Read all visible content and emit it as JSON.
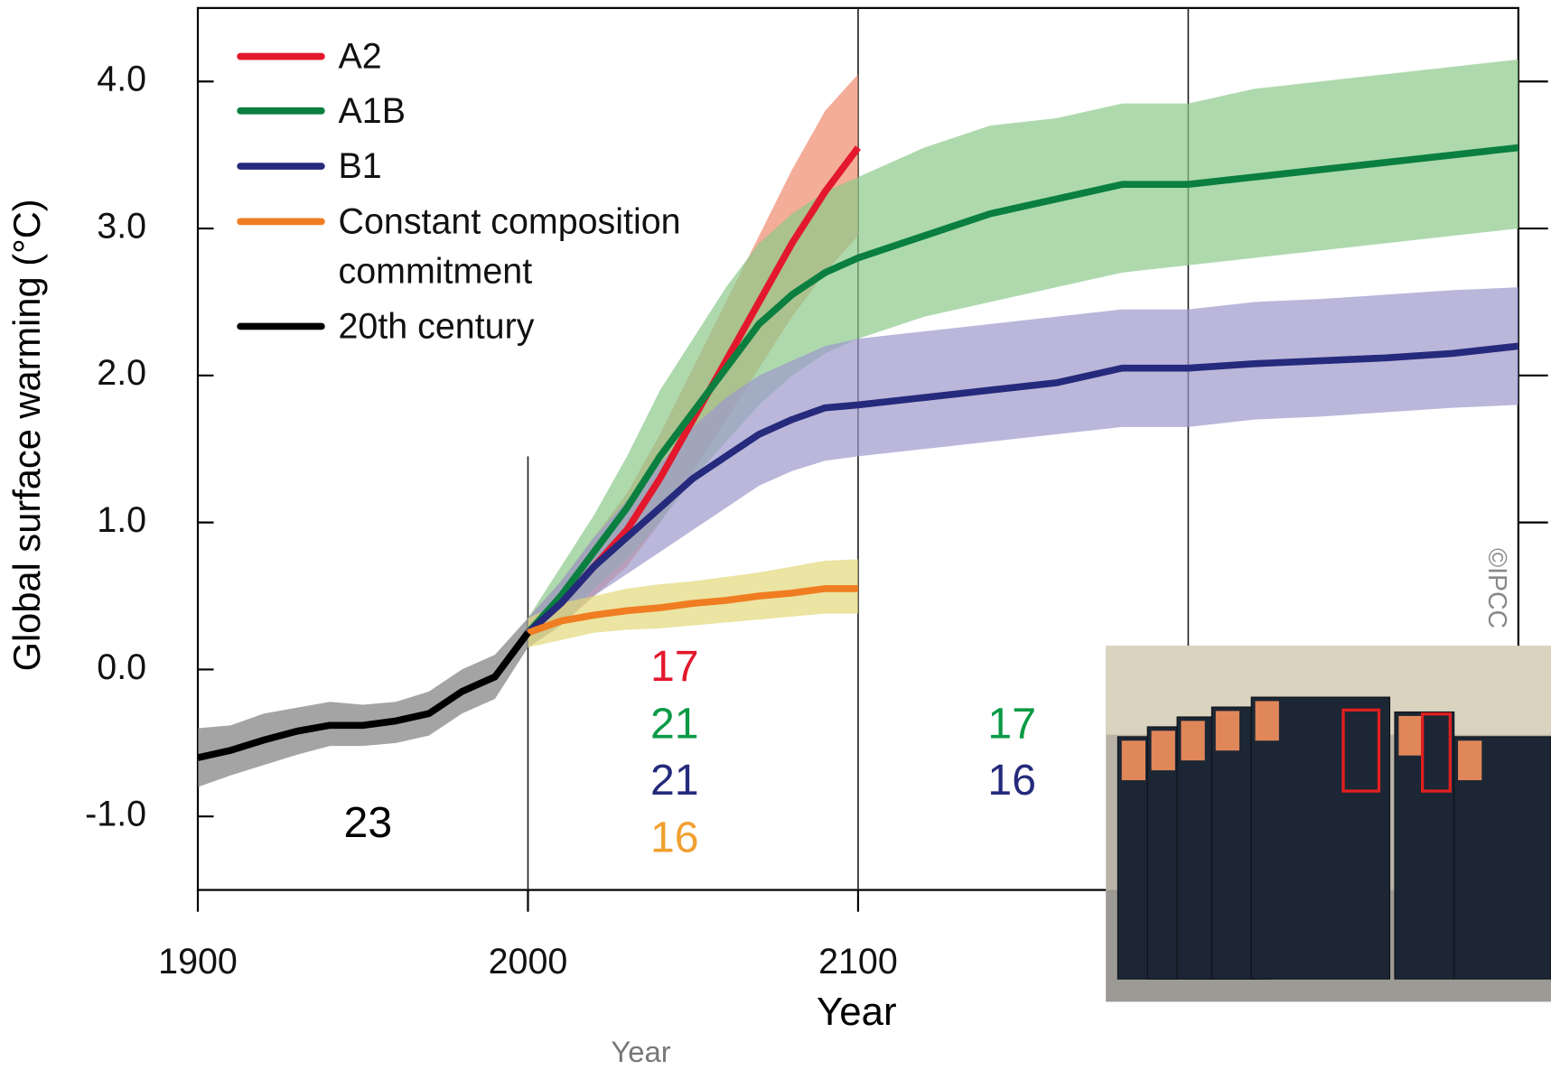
{
  "chart_data": {
    "type": "line",
    "ylabel": "Global surface warming (°C)",
    "xlabel": "Year",
    "caption": "Year",
    "credit": "©IPCC",
    "xlim": [
      1900,
      2300
    ],
    "xticks": [
      1900,
      2000,
      2100
    ],
    "ylim": [
      -1.5,
      4.5
    ],
    "yticks": [
      {
        "value": -1,
        "label": "-1.0"
      },
      {
        "value": 0,
        "label": "0.0"
      },
      {
        "value": 1,
        "label": "1.0"
      },
      {
        "value": 2,
        "label": "2.0"
      },
      {
        "value": 3,
        "label": "3.0"
      },
      {
        "value": 4,
        "label": "4.0"
      }
    ],
    "vlines": [
      2000,
      2100,
      2200
    ],
    "legend": "upper left",
    "series": [
      {
        "name": "A2",
        "color": "#e3182d",
        "band_color": "#ee8a6c",
        "x": [
          2000,
          2010,
          2020,
          2030,
          2040,
          2050,
          2060,
          2070,
          2080,
          2090,
          2100
        ],
        "values": [
          0.25,
          0.45,
          0.7,
          0.95,
          1.3,
          1.7,
          2.1,
          2.5,
          2.9,
          3.25,
          3.55
        ],
        "lower": [
          0.15,
          0.3,
          0.5,
          0.7,
          1.0,
          1.35,
          1.7,
          2.05,
          2.4,
          2.7,
          2.95
        ],
        "upper": [
          0.35,
          0.6,
          0.9,
          1.2,
          1.6,
          2.05,
          2.5,
          2.95,
          3.4,
          3.8,
          4.05
        ]
      },
      {
        "name": "A1B",
        "color": "#0a7f3f",
        "band_color": "#8cc98a",
        "x": [
          2000,
          2010,
          2020,
          2030,
          2040,
          2050,
          2060,
          2070,
          2080,
          2090,
          2100,
          2120,
          2140,
          2160,
          2180,
          2200,
          2220,
          2240,
          2260,
          2280,
          2300
        ],
        "values": [
          0.25,
          0.5,
          0.8,
          1.1,
          1.45,
          1.75,
          2.05,
          2.35,
          2.55,
          2.7,
          2.8,
          2.95,
          3.1,
          3.2,
          3.3,
          3.3,
          3.35,
          3.4,
          3.45,
          3.5,
          3.55
        ],
        "lower": [
          0.15,
          0.3,
          0.55,
          0.75,
          1.0,
          1.3,
          1.55,
          1.8,
          2.0,
          2.15,
          2.25,
          2.4,
          2.5,
          2.6,
          2.7,
          2.75,
          2.8,
          2.85,
          2.9,
          2.95,
          3.0
        ],
        "upper": [
          0.35,
          0.7,
          1.05,
          1.45,
          1.9,
          2.25,
          2.6,
          2.9,
          3.1,
          3.25,
          3.35,
          3.55,
          3.7,
          3.75,
          3.85,
          3.85,
          3.95,
          4.0,
          4.05,
          4.1,
          4.15
        ]
      },
      {
        "name": "B1",
        "color": "#262a7c",
        "band_color": "#9d99cc",
        "x": [
          2000,
          2010,
          2020,
          2030,
          2040,
          2050,
          2060,
          2070,
          2080,
          2090,
          2100,
          2120,
          2140,
          2160,
          2180,
          2200,
          2220,
          2240,
          2260,
          2280,
          2300
        ],
        "values": [
          0.25,
          0.45,
          0.7,
          0.9,
          1.1,
          1.3,
          1.45,
          1.6,
          1.7,
          1.78,
          1.8,
          1.85,
          1.9,
          1.95,
          2.05,
          2.05,
          2.08,
          2.1,
          2.12,
          2.15,
          2.2
        ],
        "lower": [
          0.15,
          0.3,
          0.5,
          0.65,
          0.8,
          0.95,
          1.1,
          1.25,
          1.35,
          1.42,
          1.45,
          1.5,
          1.55,
          1.6,
          1.65,
          1.65,
          1.7,
          1.72,
          1.75,
          1.78,
          1.8
        ],
        "upper": [
          0.35,
          0.6,
          0.9,
          1.15,
          1.4,
          1.65,
          1.85,
          2.0,
          2.1,
          2.2,
          2.25,
          2.3,
          2.35,
          2.4,
          2.45,
          2.45,
          2.5,
          2.52,
          2.55,
          2.58,
          2.6
        ]
      },
      {
        "name": "Constant composition commitment",
        "color": "#f07d22",
        "band_color": "#e3d97a",
        "x": [
          2000,
          2010,
          2020,
          2030,
          2040,
          2050,
          2060,
          2070,
          2080,
          2090,
          2100
        ],
        "values": [
          0.25,
          0.33,
          0.37,
          0.4,
          0.42,
          0.45,
          0.47,
          0.5,
          0.52,
          0.55,
          0.55
        ],
        "lower": [
          0.15,
          0.2,
          0.25,
          0.27,
          0.28,
          0.3,
          0.32,
          0.34,
          0.36,
          0.38,
          0.38
        ],
        "upper": [
          0.35,
          0.45,
          0.5,
          0.55,
          0.58,
          0.6,
          0.63,
          0.66,
          0.7,
          0.74,
          0.75
        ]
      },
      {
        "name": "20th century",
        "color": "#000000",
        "band_color": "#7d7d7d",
        "x": [
          1900,
          1910,
          1920,
          1930,
          1940,
          1950,
          1960,
          1970,
          1980,
          1990,
          2000
        ],
        "values": [
          -0.6,
          -0.55,
          -0.48,
          -0.42,
          -0.38,
          -0.38,
          -0.35,
          -0.3,
          -0.15,
          -0.05,
          0.25
        ],
        "lower": [
          -0.8,
          -0.72,
          -0.65,
          -0.58,
          -0.52,
          -0.52,
          -0.5,
          -0.45,
          -0.3,
          -0.2,
          0.15
        ],
        "upper": [
          -0.4,
          -0.38,
          -0.3,
          -0.26,
          -0.22,
          -0.24,
          -0.22,
          -0.15,
          0.0,
          0.1,
          0.35
        ]
      }
    ],
    "annotations": [
      {
        "text": "23",
        "color": "#000000"
      },
      {
        "text": "17",
        "color": "#e3182d"
      },
      {
        "text": "21",
        "color": "#0a9a45"
      },
      {
        "text": "21",
        "color": "#262a7c"
      },
      {
        "text": "16",
        "color": "#f0a030"
      },
      {
        "text": "17",
        "color": "#0a9a45"
      },
      {
        "text": "16",
        "color": "#262a7c"
      }
    ]
  }
}
